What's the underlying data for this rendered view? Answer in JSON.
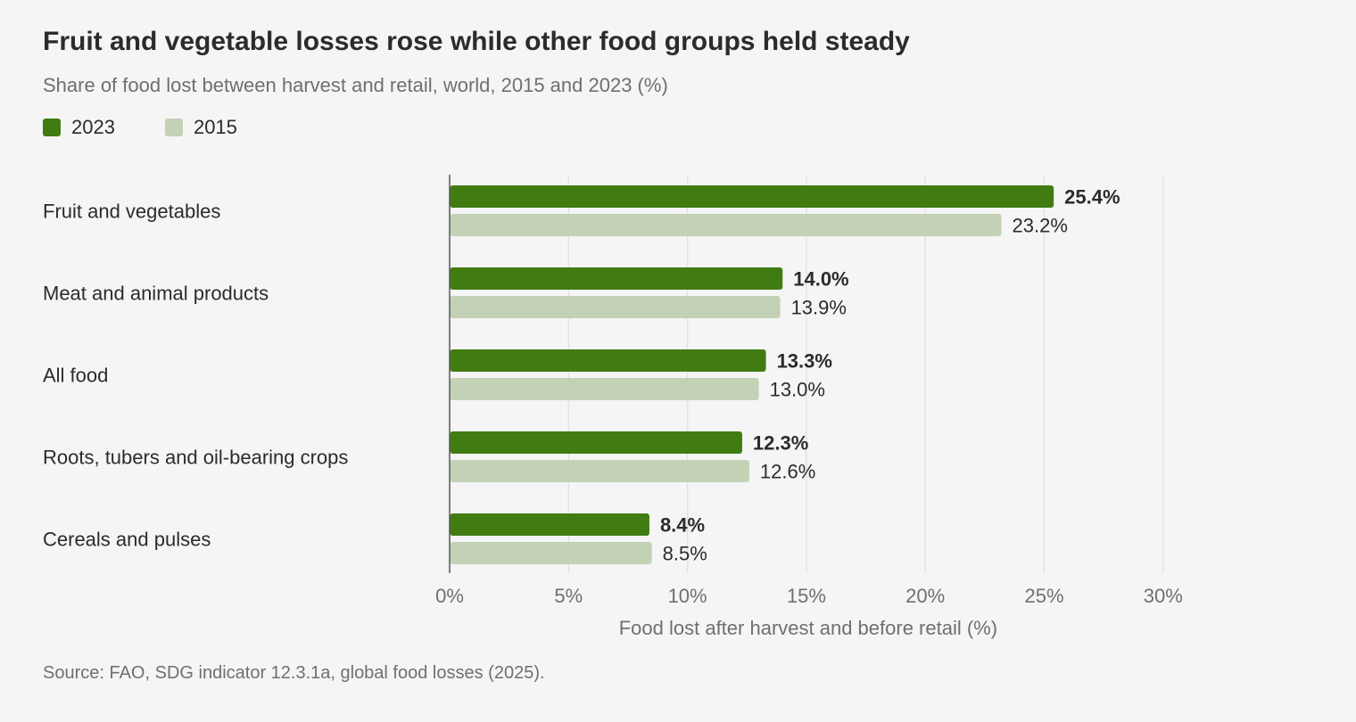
{
  "chart_data": {
    "type": "bar",
    "orientation": "horizontal",
    "title": "Fruit and vegetable losses rose while other food groups held steady",
    "subtitle": "Share of food lost between harvest and retail, world, 2015 and 2023 (%)",
    "xlabel": "Food lost after harvest and before retail (%)",
    "ylabel": "",
    "xlim": [
      0,
      30
    ],
    "x_ticks": [
      0,
      5,
      10,
      15,
      20,
      25,
      30
    ],
    "x_tick_labels": [
      "0%",
      "5%",
      "10%",
      "15%",
      "20%",
      "25%",
      "30%"
    ],
    "grid": true,
    "legend_position": "top-left",
    "categories": [
      "Fruit and vegetables",
      "Meat and animal products",
      "All food",
      "Roots, tubers and oil-bearing crops",
      "Cereals and pulses"
    ],
    "series": [
      {
        "name": "2023",
        "color": "#417c12",
        "values": [
          25.4,
          14.0,
          13.3,
          12.3,
          8.4
        ],
        "labels": [
          "25.4%",
          "14.0%",
          "13.3%",
          "12.3%",
          "8.4%"
        ]
      },
      {
        "name": "2015",
        "color": "#c3d1b5",
        "values": [
          23.2,
          13.9,
          13.0,
          12.6,
          8.5
        ],
        "labels": [
          "23.2%",
          "13.9%",
          "13.0%",
          "12.6%",
          "8.5%"
        ]
      }
    ],
    "source": "Source: FAO, SDG indicator 12.3.1a, global food losses (2025)."
  },
  "colors": {
    "background": "#f5f5f5",
    "gridline": "#e3e3e3",
    "axis": "#555555"
  }
}
